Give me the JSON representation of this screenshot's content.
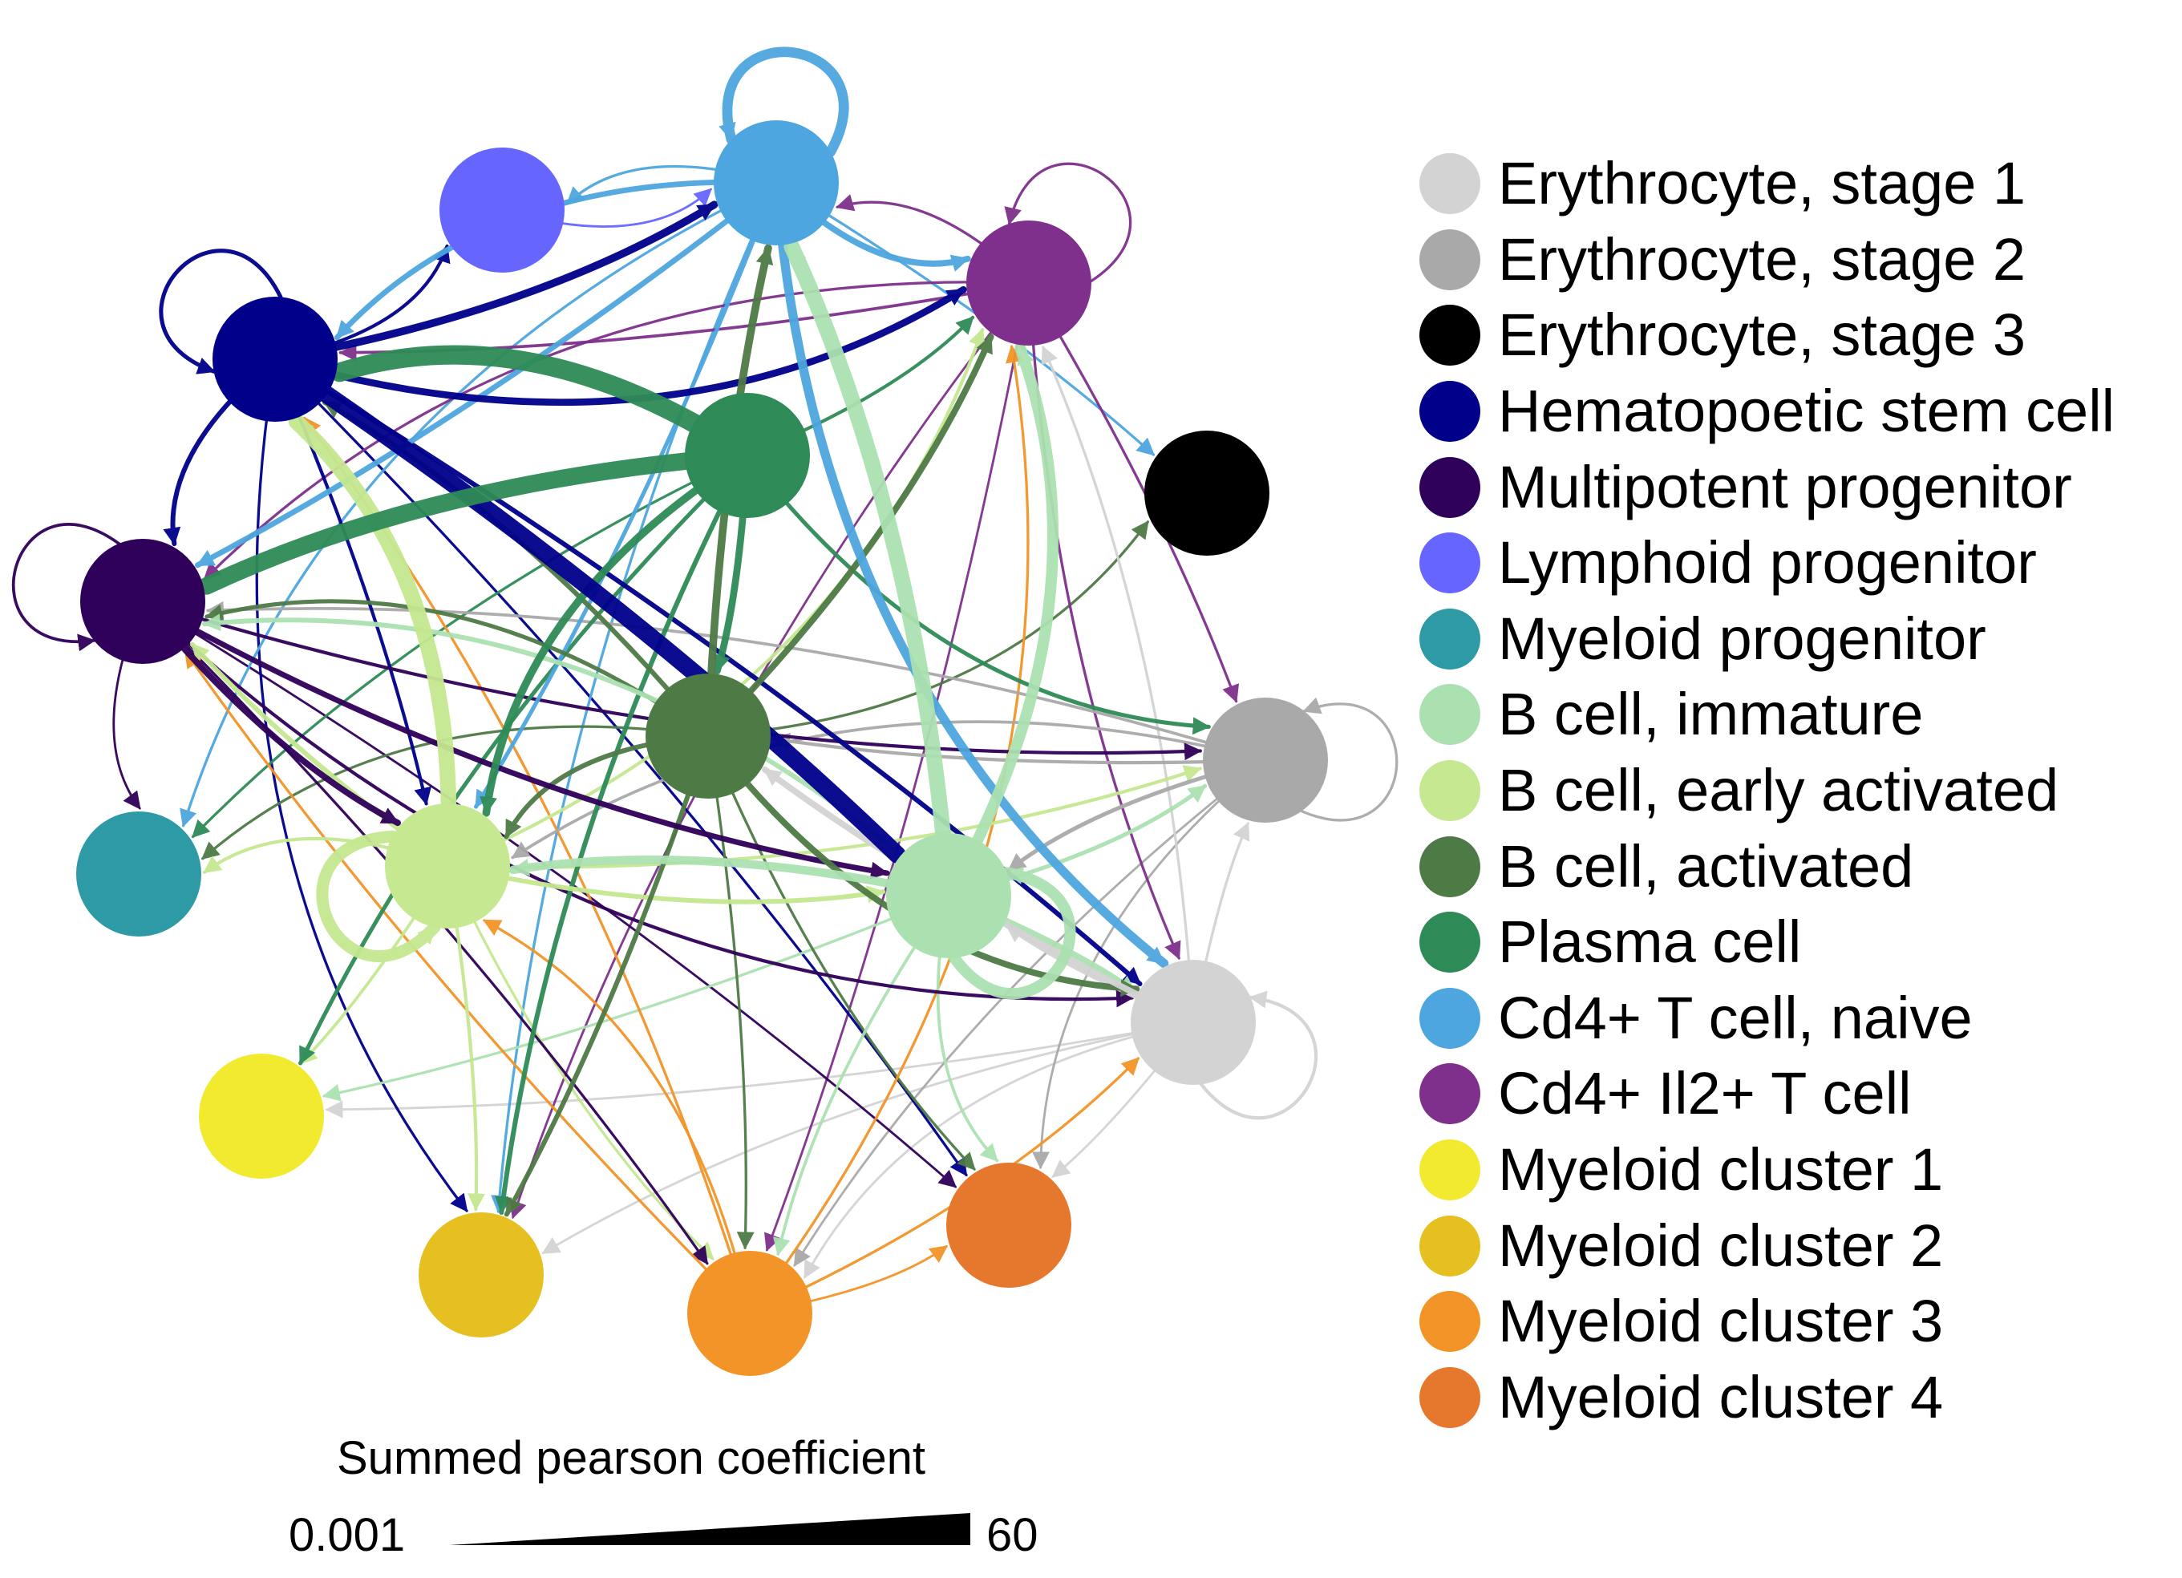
{
  "nodes": [
    {
      "id": "ery1",
      "label": "Erythrocyte, stage 1",
      "color": "#d3d3d3"
    },
    {
      "id": "ery2",
      "label": "Erythrocyte, stage 2",
      "color": "#a9a9a9"
    },
    {
      "id": "ery3",
      "label": "Erythrocyte, stage 3",
      "color": "#000000"
    },
    {
      "id": "hsc",
      "label": "Hematopoetic stem cell",
      "color": "#00008b"
    },
    {
      "id": "mpp",
      "label": "Multipotent progenitor",
      "color": "#2f0059"
    },
    {
      "id": "lymp",
      "label": "Lymphoid progenitor",
      "color": "#6666ff"
    },
    {
      "id": "myelp",
      "label": "Myeloid progenitor",
      "color": "#2e9aa6"
    },
    {
      "id": "bimm",
      "label": "B cell, immature",
      "color": "#abe1b0"
    },
    {
      "id": "bearly",
      "label": "B cell, early activated",
      "color": "#c5e890"
    },
    {
      "id": "bact",
      "label": "B cell, activated",
      "color": "#4e7a45"
    },
    {
      "id": "plasma",
      "label": "Plasma cell",
      "color": "#2e8b57"
    },
    {
      "id": "cd4n",
      "label": "Cd4+ T cell, naive",
      "color": "#4da6df"
    },
    {
      "id": "cd4il2",
      "label": "Cd4+ Il2+ T cell",
      "color": "#7f308c"
    },
    {
      "id": "my1",
      "label": "Myeloid cluster 1",
      "color": "#f2ea2e"
    },
    {
      "id": "my2",
      "label": "Myeloid cluster 2",
      "color": "#e6c021"
    },
    {
      "id": "my3",
      "label": "Myeloid cluster 3",
      "color": "#f29428"
    },
    {
      "id": "my4",
      "label": "Myeloid cluster 4",
      "color": "#e6782d"
    }
  ],
  "edges": [
    {
      "source": "hsc",
      "target": "hsc",
      "weight": 8
    },
    {
      "source": "mpp",
      "target": "mpp",
      "weight": 5
    },
    {
      "source": "cd4n",
      "target": "cd4n",
      "weight": 25
    },
    {
      "source": "cd4il2",
      "target": "cd4il2",
      "weight": 4
    },
    {
      "source": "bearly",
      "target": "bearly",
      "weight": 30
    },
    {
      "source": "bimm",
      "target": "bimm",
      "weight": 28
    },
    {
      "source": "ery1",
      "target": "ery1",
      "weight": 6
    },
    {
      "source": "ery2",
      "target": "ery2",
      "weight": 4
    },
    {
      "source": "hsc",
      "target": "cd4n",
      "weight": 18
    },
    {
      "source": "hsc",
      "target": "cd4il2",
      "weight": 16
    },
    {
      "source": "hsc",
      "target": "lymp",
      "weight": 6
    },
    {
      "source": "hsc",
      "target": "mpp",
      "weight": 10
    },
    {
      "source": "hsc",
      "target": "bimm",
      "weight": 45
    },
    {
      "source": "hsc",
      "target": "ery1",
      "weight": 10
    },
    {
      "source": "hsc",
      "target": "my2",
      "weight": 4
    },
    {
      "source": "hsc",
      "target": "my4",
      "weight": 4
    },
    {
      "source": "hsc",
      "target": "bearly",
      "weight": 6
    },
    {
      "source": "plasma",
      "target": "hsc",
      "weight": 50
    },
    {
      "source": "plasma",
      "target": "mpp",
      "weight": 45
    },
    {
      "source": "plasma",
      "target": "bearly",
      "weight": 18
    },
    {
      "source": "plasma",
      "target": "my2",
      "weight": 10
    },
    {
      "source": "plasma",
      "target": "my1",
      "weight": 8
    },
    {
      "source": "plasma",
      "target": "myelp",
      "weight": 4
    },
    {
      "source": "plasma",
      "target": "ery2",
      "weight": 8
    },
    {
      "source": "plasma",
      "target": "cd4il2",
      "weight": 6
    },
    {
      "source": "plasma",
      "target": "bact",
      "weight": 16
    },
    {
      "source": "cd4n",
      "target": "hsc",
      "weight": 12
    },
    {
      "source": "cd4n",
      "target": "mpp",
      "weight": 12
    },
    {
      "source": "cd4n",
      "target": "cd4il2",
      "weight": 14
    },
    {
      "source": "cd4n",
      "target": "lymp",
      "weight": 4
    },
    {
      "source": "cd4n",
      "target": "ery1",
      "weight": 22
    },
    {
      "source": "cd4n",
      "target": "bearly",
      "weight": 8
    },
    {
      "source": "cd4n",
      "target": "ery3",
      "weight": 4
    },
    {
      "source": "cd4n",
      "target": "my2",
      "weight": 4
    },
    {
      "source": "cd4n",
      "target": "myelp",
      "weight": 4
    },
    {
      "source": "bimm",
      "target": "cd4n",
      "weight": 40
    },
    {
      "source": "bimm",
      "target": "bearly",
      "weight": 20
    },
    {
      "source": "bimm",
      "target": "cd4il2",
      "weight": 28
    },
    {
      "source": "bimm",
      "target": "ery2",
      "weight": 8
    },
    {
      "source": "bimm",
      "target": "ery1",
      "weight": 14
    },
    {
      "source": "bimm",
      "target": "my3",
      "weight": 5
    },
    {
      "source": "bimm",
      "target": "my4",
      "weight": 5
    },
    {
      "source": "bimm",
      "target": "my1",
      "weight": 4
    },
    {
      "source": "bimm",
      "target": "mpp",
      "weight": 10
    },
    {
      "source": "bearly",
      "target": "hsc",
      "weight": 40
    },
    {
      "source": "bearly",
      "target": "mpp",
      "weight": 10
    },
    {
      "source": "bearly",
      "target": "myelp",
      "weight": 6
    },
    {
      "source": "bearly",
      "target": "my1",
      "weight": 5
    },
    {
      "source": "bearly",
      "target": "my2",
      "weight": 6
    },
    {
      "source": "bearly",
      "target": "my3",
      "weight": 4
    },
    {
      "source": "bearly",
      "target": "ery2",
      "weight": 6
    },
    {
      "source": "bearly",
      "target": "bimm",
      "weight": 10
    },
    {
      "source": "bearly",
      "target": "cd4il2",
      "weight": 6
    },
    {
      "source": "bact",
      "target": "cd4n",
      "weight": 18
    },
    {
      "source": "bact",
      "target": "cd4il2",
      "weight": 14
    },
    {
      "source": "bact",
      "target": "bearly",
      "weight": 10
    },
    {
      "source": "bact",
      "target": "my2",
      "weight": 10
    },
    {
      "source": "bact",
      "target": "hsc",
      "weight": 10
    },
    {
      "source": "bact",
      "target": "mpp",
      "weight": 8
    },
    {
      "source": "bact",
      "target": "ery1",
      "weight": 14
    },
    {
      "source": "bact",
      "target": "ery3",
      "weight": 4
    },
    {
      "source": "bact",
      "target": "my3",
      "weight": 4
    },
    {
      "source": "bact",
      "target": "my4",
      "weight": 4
    },
    {
      "source": "bact",
      "target": "myelp",
      "weight": 4
    },
    {
      "source": "ery1",
      "target": "bact",
      "weight": 14
    },
    {
      "source": "ery1",
      "target": "ery2",
      "weight": 4
    },
    {
      "source": "ery1",
      "target": "my1",
      "weight": 3
    },
    {
      "source": "ery1",
      "target": "my2",
      "weight": 3
    },
    {
      "source": "ery1",
      "target": "my3",
      "weight": 3
    },
    {
      "source": "ery1",
      "target": "my4",
      "weight": 3
    },
    {
      "source": "ery1",
      "target": "bimm",
      "weight": 8
    },
    {
      "source": "ery1",
      "target": "cd4il2",
      "weight": 4
    },
    {
      "source": "ery2",
      "target": "bimm",
      "weight": 8
    },
    {
      "source": "ery2",
      "target": "bact",
      "weight": 6
    },
    {
      "source": "ery2",
      "target": "my3",
      "weight": 3
    },
    {
      "source": "ery2",
      "target": "my4",
      "weight": 3
    },
    {
      "source": "ery2",
      "target": "mpp",
      "weight": 5
    },
    {
      "source": "ery2",
      "target": "bearly",
      "weight": 5
    },
    {
      "source": "cd4il2",
      "target": "hsc",
      "weight": 5
    },
    {
      "source": "cd4il2",
      "target": "mpp",
      "weight": 4
    },
    {
      "source": "cd4il2",
      "target": "ery2",
      "weight": 4
    },
    {
      "source": "cd4il2",
      "target": "ery1",
      "weight": 4
    },
    {
      "source": "cd4il2",
      "target": "my3",
      "weight": 3
    },
    {
      "source": "cd4il2",
      "target": "my2",
      "weight": 3
    },
    {
      "source": "cd4il2",
      "target": "cd4n",
      "weight": 4
    },
    {
      "source": "mpp",
      "target": "bearly",
      "weight": 14
    },
    {
      "source": "mpp",
      "target": "myelp",
      "weight": 3
    },
    {
      "source": "mpp",
      "target": "my4",
      "weight": 3
    },
    {
      "source": "mpp",
      "target": "bimm",
      "weight": 12
    },
    {
      "source": "mpp",
      "target": "ery2",
      "weight": 6
    },
    {
      "source": "mpp",
      "target": "my3",
      "weight": 4
    },
    {
      "source": "mpp",
      "target": "ery1",
      "weight": 6
    },
    {
      "source": "my3",
      "target": "ery1",
      "weight": 4
    },
    {
      "source": "my3",
      "target": "bearly",
      "weight": 4
    },
    {
      "source": "my3",
      "target": "mpp",
      "weight": 4
    },
    {
      "source": "my3",
      "target": "my4",
      "weight": 3
    },
    {
      "source": "my3",
      "target": "hsc",
      "weight": 4
    },
    {
      "source": "my3",
      "target": "cd4il2",
      "weight": 4
    },
    {
      "source": "lymp",
      "target": "cd4n",
      "weight": 3
    }
  ],
  "legend": {
    "items": [
      "Erythrocyte, stage 1",
      "Erythrocyte, stage 2",
      "Erythrocyte, stage 3",
      "Hematopoetic stem cell",
      "Multipotent progenitor",
      "Lymphoid progenitor",
      "Myeloid progenitor",
      "B cell, immature",
      "B cell, early activated",
      "B cell, activated",
      "Plasma cell",
      "Cd4+ T cell, naive",
      "Cd4+ Il2+ T cell",
      "Myeloid cluster 1",
      "Myeloid cluster 2",
      "Myeloid cluster 3",
      "Myeloid cluster 4"
    ]
  },
  "scale": {
    "title": "Summed pearson coefficient",
    "min_label": "0.001",
    "max_label": "60",
    "min": 0.001,
    "max": 60
  }
}
